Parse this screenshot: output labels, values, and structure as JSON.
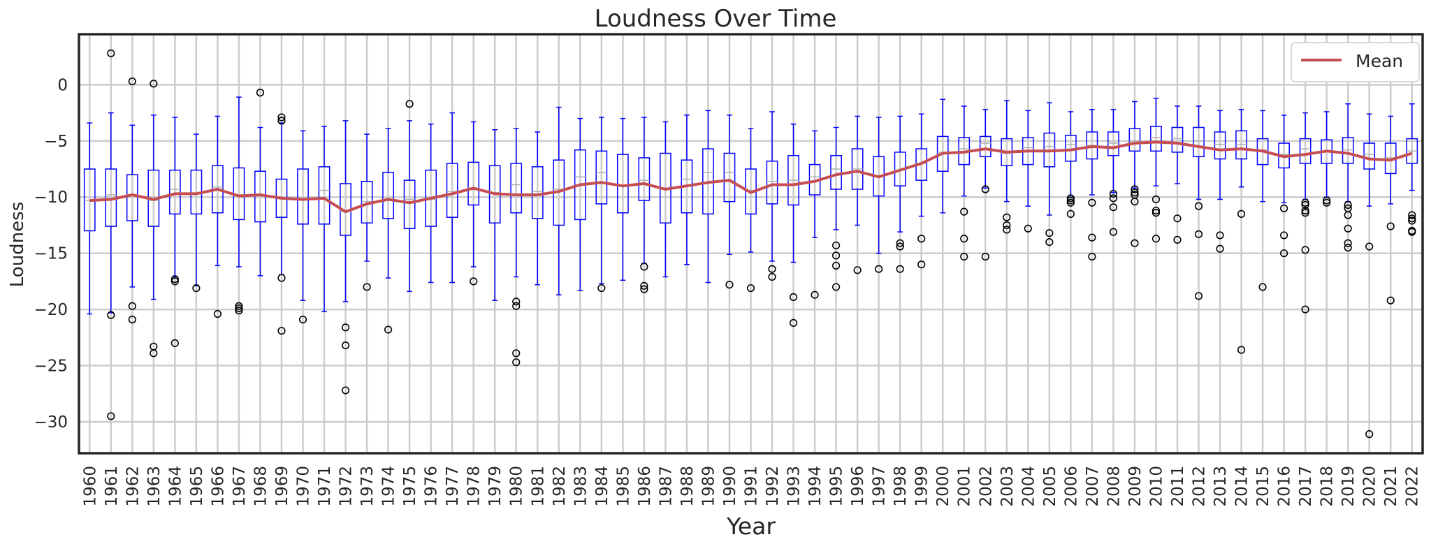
{
  "chart_data": {
    "type": "box",
    "title": "Loudness Over Time",
    "xlabel": "Year",
    "ylabel": "Loudness",
    "ylim": [
      -32.8,
      4.5
    ],
    "yticks": [
      0,
      -5,
      -10,
      -15,
      -20,
      -25,
      -30
    ],
    "ytick_labels": [
      "0",
      "−5",
      "−10",
      "−15",
      "−20",
      "−25",
      "−30"
    ],
    "grid": true,
    "legend": {
      "position": "top-right",
      "entries": [
        "Mean"
      ]
    },
    "colors": {
      "box": "#0000ff",
      "mean_line": "#c44e52",
      "median": "#b0b0b0",
      "grid": "#cccccc",
      "outlier": "#000000",
      "frame": "#262626"
    },
    "categories": [
      "1960",
      "1961",
      "1962",
      "1963",
      "1964",
      "1965",
      "1966",
      "1967",
      "1968",
      "1969",
      "1970",
      "1971",
      "1972",
      "1973",
      "1974",
      "1975",
      "1976",
      "1977",
      "1978",
      "1979",
      "1980",
      "1981",
      "1982",
      "1983",
      "1984",
      "1985",
      "1986",
      "1987",
      "1988",
      "1989",
      "1990",
      "1991",
      "1992",
      "1993",
      "1994",
      "1995",
      "1996",
      "1997",
      "1998",
      "1999",
      "2000",
      "2001",
      "2002",
      "2003",
      "2004",
      "2005",
      "2006",
      "2007",
      "2008",
      "2009",
      "2010",
      "2011",
      "2012",
      "2013",
      "2014",
      "2015",
      "2016",
      "2017",
      "2018",
      "2019",
      "2020",
      "2021",
      "2022"
    ],
    "series": [
      {
        "name": "Mean",
        "values": [
          -10.3,
          -10.2,
          -9.8,
          -10.2,
          -9.7,
          -9.7,
          -9.3,
          -9.9,
          -9.8,
          -10.1,
          -10.2,
          -10.1,
          -11.3,
          -10.6,
          -10.2,
          -10.5,
          -10.1,
          -9.7,
          -9.2,
          -9.7,
          -9.8,
          -9.8,
          -9.5,
          -8.9,
          -8.7,
          -9.0,
          -8.8,
          -9.3,
          -9.0,
          -8.7,
          -8.5,
          -9.6,
          -8.9,
          -8.9,
          -8.6,
          -8.0,
          -7.7,
          -8.2,
          -7.6,
          -7.0,
          -6.1,
          -6.0,
          -5.7,
          -6.0,
          -5.9,
          -5.9,
          -5.8,
          -5.5,
          -5.6,
          -5.2,
          -5.1,
          -5.2,
          -5.5,
          -5.8,
          -5.7,
          -5.9,
          -6.4,
          -6.2,
          -5.9,
          -6.1,
          -6.6,
          -6.7,
          -6.1
        ]
      }
    ],
    "boxes": [
      {
        "year": "1960",
        "whisker_low": -20.4,
        "q1": -13.0,
        "median": -10.3,
        "q3": -7.5,
        "whisker_high": -3.4,
        "outliers": []
      },
      {
        "year": "1961",
        "whisker_low": -20.3,
        "q1": -12.6,
        "median": -9.8,
        "q3": -7.5,
        "whisker_high": -2.5,
        "outliers": [
          2.8,
          -20.5,
          -29.5
        ]
      },
      {
        "year": "1962",
        "whisker_low": -18.0,
        "q1": -12.1,
        "median": -9.8,
        "q3": -8.0,
        "whisker_high": -3.6,
        "outliers": [
          0.3,
          -19.7,
          -20.9
        ]
      },
      {
        "year": "1963",
        "whisker_low": -19.1,
        "q1": -12.6,
        "median": -10.3,
        "q3": -7.6,
        "whisker_high": -2.7,
        "outliers": [
          0.1,
          -23.3,
          -23.9
        ]
      },
      {
        "year": "1964",
        "whisker_low": -17.1,
        "q1": -11.5,
        "median": -9.3,
        "q3": -7.6,
        "whisker_high": -2.9,
        "outliers": [
          -17.3,
          -17.5,
          -23.0
        ]
      },
      {
        "year": "1965",
        "whisker_low": -17.9,
        "q1": -11.5,
        "median": -9.7,
        "q3": -7.6,
        "whisker_high": -4.4,
        "outliers": [
          -18.1
        ]
      },
      {
        "year": "1966",
        "whisker_low": -16.1,
        "q1": -11.4,
        "median": -9.1,
        "q3": -7.2,
        "whisker_high": -2.8,
        "outliers": [
          -20.4
        ]
      },
      {
        "year": "1967",
        "whisker_low": -16.2,
        "q1": -12.0,
        "median": -9.8,
        "q3": -7.4,
        "whisker_high": -1.1,
        "outliers": [
          -19.7,
          -19.9,
          -20.1
        ]
      },
      {
        "year": "1968",
        "whisker_low": -17.0,
        "q1": -12.2,
        "median": -9.9,
        "q3": -7.7,
        "whisker_high": -3.8,
        "outliers": [
          -0.7
        ]
      },
      {
        "year": "1969",
        "whisker_low": -16.9,
        "q1": -11.8,
        "median": -10.1,
        "q3": -8.4,
        "whisker_high": -3.4,
        "outliers": [
          -2.9,
          -3.2,
          -17.2,
          -21.9
        ]
      },
      {
        "year": "1970",
        "whisker_low": -19.2,
        "q1": -12.4,
        "median": -10.2,
        "q3": -7.5,
        "whisker_high": -4.1,
        "outliers": [
          -20.9
        ]
      },
      {
        "year": "1971",
        "whisker_low": -20.2,
        "q1": -12.4,
        "median": -9.4,
        "q3": -7.3,
        "whisker_high": -3.7,
        "outliers": []
      },
      {
        "year": "1972",
        "whisker_low": -19.3,
        "q1": -13.4,
        "median": -11.3,
        "q3": -8.8,
        "whisker_high": -3.2,
        "outliers": [
          -21.6,
          -23.2,
          -27.2
        ]
      },
      {
        "year": "1973",
        "whisker_low": -15.7,
        "q1": -12.3,
        "median": -10.4,
        "q3": -8.6,
        "whisker_high": -4.4,
        "outliers": [
          -18.0
        ]
      },
      {
        "year": "1974",
        "whisker_low": -17.2,
        "q1": -11.9,
        "median": -10.2,
        "q3": -7.8,
        "whisker_high": -3.9,
        "outliers": [
          -21.8
        ]
      },
      {
        "year": "1975",
        "whisker_low": -18.4,
        "q1": -12.8,
        "median": -10.2,
        "q3": -8.5,
        "whisker_high": -3.2,
        "outliers": [
          -1.7
        ]
      },
      {
        "year": "1976",
        "whisker_low": -17.6,
        "q1": -12.6,
        "median": -10.2,
        "q3": -7.6,
        "whisker_high": -3.5,
        "outliers": []
      },
      {
        "year": "1977",
        "whisker_low": -17.6,
        "q1": -11.8,
        "median": -9.5,
        "q3": -7.0,
        "whisker_high": -2.5,
        "outliers": []
      },
      {
        "year": "1978",
        "whisker_low": -16.2,
        "q1": -10.7,
        "median": -9.2,
        "q3": -6.9,
        "whisker_high": -3.3,
        "outliers": [
          -17.5
        ]
      },
      {
        "year": "1979",
        "whisker_low": -19.2,
        "q1": -12.3,
        "median": -9.6,
        "q3": -7.2,
        "whisker_high": -4.0,
        "outliers": []
      },
      {
        "year": "1980",
        "whisker_low": -17.1,
        "q1": -11.4,
        "median": -8.9,
        "q3": -7.0,
        "whisker_high": -3.9,
        "outliers": [
          -19.3,
          -19.7,
          -23.9,
          -24.7
        ]
      },
      {
        "year": "1981",
        "whisker_low": -17.8,
        "q1": -11.9,
        "median": -9.5,
        "q3": -7.3,
        "whisker_high": -4.2,
        "outliers": []
      },
      {
        "year": "1982",
        "whisker_low": -18.7,
        "q1": -12.5,
        "median": -9.3,
        "q3": -6.7,
        "whisker_high": -2.0,
        "outliers": []
      },
      {
        "year": "1983",
        "whisker_low": -18.3,
        "q1": -12.0,
        "median": -8.2,
        "q3": -5.8,
        "whisker_high": -3.0,
        "outliers": []
      },
      {
        "year": "1984",
        "whisker_low": -17.7,
        "q1": -10.6,
        "median": -7.8,
        "q3": -5.9,
        "whisker_high": -2.9,
        "outliers": [
          -18.1
        ]
      },
      {
        "year": "1985",
        "whisker_low": -17.4,
        "q1": -11.4,
        "median": -9.0,
        "q3": -6.2,
        "whisker_high": -3.0,
        "outliers": []
      },
      {
        "year": "1986",
        "whisker_low": -15.9,
        "q1": -10.3,
        "median": -8.5,
        "q3": -6.5,
        "whisker_high": -2.9,
        "outliers": [
          -16.2,
          -17.9,
          -18.2
        ]
      },
      {
        "year": "1987",
        "whisker_low": -17.1,
        "q1": -12.3,
        "median": -9.2,
        "q3": -6.1,
        "whisker_high": -3.3,
        "outliers": []
      },
      {
        "year": "1988",
        "whisker_low": -16.0,
        "q1": -11.4,
        "median": -8.4,
        "q3": -6.7,
        "whisker_high": -2.7,
        "outliers": []
      },
      {
        "year": "1989",
        "whisker_low": -17.6,
        "q1": -11.5,
        "median": -7.8,
        "q3": -5.7,
        "whisker_high": -2.3,
        "outliers": []
      },
      {
        "year": "1990",
        "whisker_low": -15.1,
        "q1": -10.4,
        "median": -7.8,
        "q3": -6.1,
        "whisker_high": -2.7,
        "outliers": [
          -17.8
        ]
      },
      {
        "year": "1991",
        "whisker_low": -14.9,
        "q1": -11.5,
        "median": -9.4,
        "q3": -7.5,
        "whisker_high": -3.9,
        "outliers": [
          -18.1
        ]
      },
      {
        "year": "1992",
        "whisker_low": -15.7,
        "q1": -10.6,
        "median": -8.6,
        "q3": -6.8,
        "whisker_high": -2.4,
        "outliers": [
          -16.4,
          -17.1
        ]
      },
      {
        "year": "1993",
        "whisker_low": -15.8,
        "q1": -10.7,
        "median": -8.5,
        "q3": -6.3,
        "whisker_high": -3.5,
        "outliers": [
          -18.9,
          -21.2
        ]
      },
      {
        "year": "1994",
        "whisker_low": -13.6,
        "q1": -9.8,
        "median": -8.2,
        "q3": -7.1,
        "whisker_high": -4.1,
        "outliers": [
          -18.7
        ]
      },
      {
        "year": "1995",
        "whisker_low": -12.9,
        "q1": -9.3,
        "median": -7.5,
        "q3": -6.3,
        "whisker_high": -3.8,
        "outliers": [
          -14.3,
          -15.2,
          -16.1,
          -18.0
        ]
      },
      {
        "year": "1996",
        "whisker_low": -12.5,
        "q1": -9.3,
        "median": -7.5,
        "q3": -5.7,
        "whisker_high": -2.8,
        "outliers": [
          -16.5
        ]
      },
      {
        "year": "1997",
        "whisker_low": -15.0,
        "q1": -9.9,
        "median": -8.1,
        "q3": -6.4,
        "whisker_high": -2.9,
        "outliers": [
          -16.4
        ]
      },
      {
        "year": "1998",
        "whisker_low": -13.1,
        "q1": -9.0,
        "median": -7.6,
        "q3": -6.0,
        "whisker_high": -2.8,
        "outliers": [
          -14.1,
          -14.4,
          -16.4
        ]
      },
      {
        "year": "1999",
        "whisker_low": -11.7,
        "q1": -8.5,
        "median": -7.0,
        "q3": -5.7,
        "whisker_high": -2.6,
        "outliers": [
          -13.7,
          -16.0
        ]
      },
      {
        "year": "2000",
        "whisker_low": -11.4,
        "q1": -7.7,
        "median": -6.0,
        "q3": -4.6,
        "whisker_high": -1.3,
        "outliers": []
      },
      {
        "year": "2001",
        "whisker_low": -9.9,
        "q1": -7.1,
        "median": -5.7,
        "q3": -4.7,
        "whisker_high": -1.9,
        "outliers": [
          -11.3,
          -13.7,
          -15.3
        ]
      },
      {
        "year": "2002",
        "whisker_low": -9.2,
        "q1": -6.4,
        "median": -5.2,
        "q3": -4.6,
        "whisker_high": -2.2,
        "outliers": [
          -9.3,
          -15.3
        ]
      },
      {
        "year": "2003",
        "whisker_low": -10.4,
        "q1": -7.2,
        "median": -6.1,
        "q3": -4.8,
        "whisker_high": -1.4,
        "outliers": [
          -11.8,
          -12.5,
          -12.9
        ]
      },
      {
        "year": "2004",
        "whisker_low": -10.8,
        "q1": -7.1,
        "median": -5.6,
        "q3": -4.7,
        "whisker_high": -2.3,
        "outliers": [
          -12.8
        ]
      },
      {
        "year": "2005",
        "whisker_low": -11.6,
        "q1": -7.3,
        "median": -5.5,
        "q3": -4.3,
        "whisker_high": -1.6,
        "outliers": [
          -13.2,
          -14.0
        ]
      },
      {
        "year": "2006",
        "whisker_low": -10.0,
        "q1": -6.8,
        "median": -5.3,
        "q3": -4.5,
        "whisker_high": -2.4,
        "outliers": [
          -10.1,
          -10.3,
          -10.5,
          -11.5
        ]
      },
      {
        "year": "2007",
        "whisker_low": -9.8,
        "q1": -6.6,
        "median": -5.4,
        "q3": -4.2,
        "whisker_high": -2.2,
        "outliers": [
          -10.5,
          -13.6,
          -15.3
        ]
      },
      {
        "year": "2008",
        "whisker_low": -9.6,
        "q1": -6.3,
        "median": -5.2,
        "q3": -4.2,
        "whisker_high": -2.2,
        "outliers": [
          -9.7,
          -10.1,
          -10.9,
          -13.1
        ]
      },
      {
        "year": "2009",
        "whisker_low": -9.2,
        "q1": -5.9,
        "median": -5.0,
        "q3": -3.9,
        "whisker_high": -1.5,
        "outliers": [
          -9.3,
          -9.6,
          -9.8,
          -10.4,
          -14.1
        ]
      },
      {
        "year": "2010",
        "whisker_low": -9.0,
        "q1": -5.9,
        "median": -4.7,
        "q3": -3.7,
        "whisker_high": -1.2,
        "outliers": [
          -10.2,
          -11.2,
          -11.4,
          -13.7
        ]
      },
      {
        "year": "2011",
        "whisker_low": -8.8,
        "q1": -6.0,
        "median": -4.8,
        "q3": -3.8,
        "whisker_high": -1.9,
        "outliers": [
          -11.9,
          -13.8
        ]
      },
      {
        "year": "2012",
        "whisker_low": -10.2,
        "q1": -6.4,
        "median": -5.0,
        "q3": -3.8,
        "whisker_high": -1.9,
        "outliers": [
          -10.8,
          -13.3,
          -18.8
        ]
      },
      {
        "year": "2013",
        "whisker_low": -10.2,
        "q1": -6.6,
        "median": -5.3,
        "q3": -4.2,
        "whisker_high": -2.3,
        "outliers": [
          -13.4,
          -14.6
        ]
      },
      {
        "year": "2014",
        "whisker_low": -9.1,
        "q1": -6.6,
        "median": -5.3,
        "q3": -4.1,
        "whisker_high": -2.2,
        "outliers": [
          -11.5,
          -23.6
        ]
      },
      {
        "year": "2015",
        "whisker_low": -10.4,
        "q1": -7.1,
        "median": -5.8,
        "q3": -4.8,
        "whisker_high": -2.3,
        "outliers": [
          -18.0
        ]
      },
      {
        "year": "2016",
        "whisker_low": -10.5,
        "q1": -7.4,
        "median": -6.2,
        "q3": -5.2,
        "whisker_high": -2.7,
        "outliers": [
          -11.0,
          -13.4,
          -15.0
        ]
      },
      {
        "year": "2017",
        "whisker_low": -10.2,
        "q1": -7.0,
        "median": -5.7,
        "q3": -4.8,
        "whisker_high": -2.5,
        "outliers": [
          -10.5,
          -10.7,
          -11.2,
          -11.4,
          -14.7,
          -20.0
        ]
      },
      {
        "year": "2018",
        "whisker_low": -10.0,
        "q1": -7.0,
        "median": -5.9,
        "q3": -4.9,
        "whisker_high": -2.4,
        "outliers": [
          -10.3,
          -10.5
        ]
      },
      {
        "year": "2019",
        "whisker_low": -10.4,
        "q1": -7.0,
        "median": -5.8,
        "q3": -4.7,
        "whisker_high": -1.7,
        "outliers": [
          -10.7,
          -11.0,
          -11.6,
          -12.8,
          -14.1,
          -14.5
        ]
      },
      {
        "year": "2020",
        "whisker_low": -10.8,
        "q1": -7.5,
        "median": -6.2,
        "q3": -5.2,
        "whisker_high": -2.6,
        "outliers": [
          -14.4,
          -31.1
        ]
      },
      {
        "year": "2021",
        "whisker_low": -10.6,
        "q1": -7.9,
        "median": -6.5,
        "q3": -5.2,
        "whisker_high": -2.8,
        "outliers": [
          -12.6,
          -19.2
        ]
      },
      {
        "year": "2022",
        "whisker_low": -9.4,
        "q1": -7.0,
        "median": -5.9,
        "q3": -4.8,
        "whisker_high": -1.7,
        "outliers": [
          -11.6,
          -11.9,
          -12.1,
          -13.0,
          -13.1
        ]
      }
    ]
  }
}
